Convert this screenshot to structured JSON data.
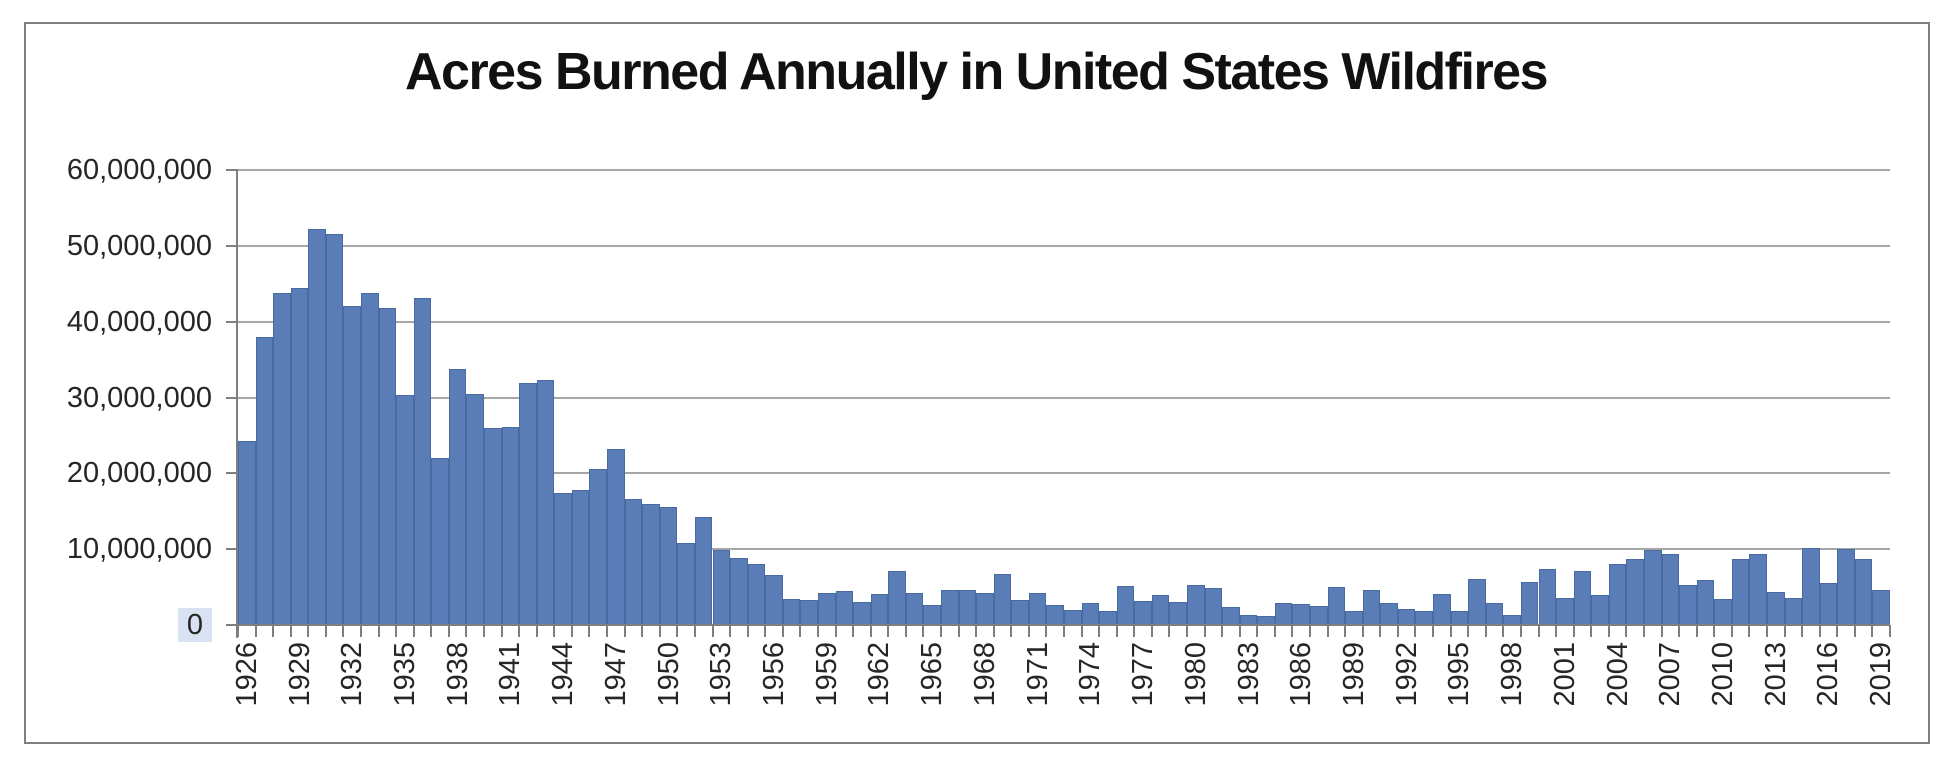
{
  "title": "Acres Burned Annually in United States Wildfires",
  "colors": {
    "bar_fill": "#5b7db7",
    "bar_border": "#4a6ba1",
    "gridline": "#a6a6a6",
    "axis": "#7f7f7f",
    "label_text": "#262626",
    "title_text": "#111111",
    "zero_label_highlight": "#d9e2f3",
    "frame_border": "#808080",
    "background": "#ffffff"
  },
  "y_axis": {
    "tick_labels": [
      "60,000,000",
      "50,000,000",
      "40,000,000",
      "30,000,000",
      "20,000,000",
      "10,000,000",
      "0"
    ],
    "highlighted_label": "0"
  },
  "x_axis": {
    "tick_labels": [
      "1926",
      "1929",
      "1932",
      "1935",
      "1938",
      "1941",
      "1944",
      "1947",
      "1950",
      "1953",
      "1956",
      "1959",
      "1962",
      "1965",
      "1968",
      "1971",
      "1974",
      "1977",
      "1980",
      "1983",
      "1986",
      "1989",
      "1992",
      "1995",
      "1998",
      "2001",
      "2004",
      "2007",
      "2010",
      "2013",
      "2016",
      "2019"
    ],
    "label_interval_years": 3
  },
  "chart_data": {
    "type": "bar",
    "title": "Acres Burned Annually in United States Wildfires",
    "xlabel": "",
    "ylabel": "",
    "unit": "acres",
    "ylim": [
      0,
      60000000
    ],
    "ytick_interval": 10000000,
    "grid": "horizontal",
    "legend": "none",
    "years": [
      1926,
      1927,
      1928,
      1929,
      1930,
      1931,
      1932,
      1933,
      1934,
      1935,
      1936,
      1937,
      1938,
      1939,
      1940,
      1941,
      1942,
      1943,
      1944,
      1945,
      1946,
      1947,
      1948,
      1949,
      1950,
      1951,
      1952,
      1953,
      1954,
      1955,
      1956,
      1957,
      1958,
      1959,
      1960,
      1961,
      1962,
      1963,
      1964,
      1965,
      1966,
      1967,
      1968,
      1969,
      1970,
      1971,
      1972,
      1973,
      1974,
      1975,
      1976,
      1977,
      1978,
      1979,
      1980,
      1981,
      1982,
      1983,
      1984,
      1985,
      1986,
      1987,
      1988,
      1989,
      1990,
      1991,
      1992,
      1993,
      1994,
      1995,
      1996,
      1997,
      1998,
      1999,
      2000,
      2001,
      2002,
      2003,
      2004,
      2005,
      2006,
      2007,
      2008,
      2009,
      2010,
      2011,
      2012,
      2013,
      2014,
      2015,
      2016,
      2017,
      2018,
      2019
    ],
    "values": [
      24302000,
      37919000,
      43770000,
      44491000,
      52266000,
      51607000,
      42124000,
      43776000,
      41788000,
      30334000,
      43070000,
      21980000,
      33700000,
      30449000,
      25966000,
      26167000,
      31854000,
      32333000,
      17466000,
      17828000,
      20540000,
      23226000,
      16557000,
      15963000,
      15519000,
      10781000,
      14187000,
      9878000,
      8796000,
      8061000,
      6617000,
      3391000,
      3323000,
      4159000,
      4479000,
      3036000,
      4079000,
      7120000,
      4197000,
      2652000,
      4574000,
      4658000,
      4232000,
      6689000,
      3278000,
      4278000,
      2641000,
      1915000,
      2879000,
      1791000,
      5109000,
      3152000,
      3910000,
      2986000,
      5260000,
      4814000,
      2382000,
      1323000,
      1148000,
      2896000,
      2719000,
      2447000,
      5009000,
      1827000,
      4621000,
      2953000,
      2069000,
      1797000,
      4073000,
      1840000,
      6065000,
      2856000,
      1329000,
      5626000,
      7393000,
      3570000,
      7184000,
      3960000,
      8097000,
      8689000,
      9873000,
      9328000,
      5292000,
      5921000,
      3422000,
      8711000,
      9326000,
      4319000,
      3595000,
      10125000,
      5509000,
      10026000,
      8767000,
      4664000
    ]
  }
}
